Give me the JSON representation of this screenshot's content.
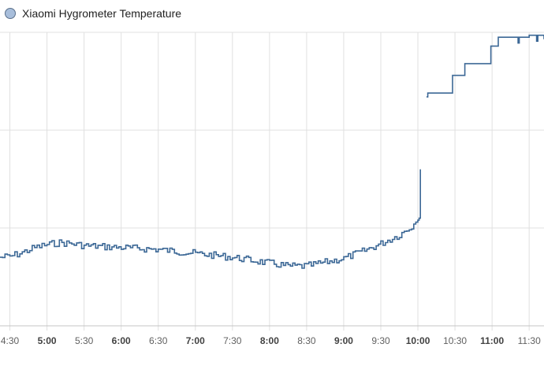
{
  "legend": {
    "label": "Xiaomi Hygrometer Temperature",
    "swatch_fill": "#a8bedb"
  },
  "colors": {
    "line": "#3c6896",
    "grid": "#e0e0e0",
    "axis": "#c4c4c4"
  },
  "chart_data": {
    "type": "line",
    "grid": true,
    "legend_position": "top-left",
    "x_unit": "time",
    "xlim": [
      "4:22",
      "11:42"
    ],
    "ylim": [
      0,
      3
    ],
    "x_ticks": [
      {
        "label": "4:30",
        "t": "4:30",
        "major": false
      },
      {
        "label": "5:00",
        "t": "5:00",
        "major": true
      },
      {
        "label": "5:30",
        "t": "5:30",
        "major": false
      },
      {
        "label": "6:00",
        "t": "6:00",
        "major": true
      },
      {
        "label": "6:30",
        "t": "6:30",
        "major": false
      },
      {
        "label": "7:00",
        "t": "7:00",
        "major": true
      },
      {
        "label": "7:30",
        "t": "7:30",
        "major": false
      },
      {
        "label": "8:00",
        "t": "8:00",
        "major": true
      },
      {
        "label": "8:30",
        "t": "8:30",
        "major": false
      },
      {
        "label": "9:00",
        "t": "9:00",
        "major": true
      },
      {
        "label": "9:30",
        "t": "9:30",
        "major": false
      },
      {
        "label": "10:00",
        "t": "10:00",
        "major": true
      },
      {
        "label": "10:30",
        "t": "10:30",
        "major": false
      },
      {
        "label": "11:00",
        "t": "11:00",
        "major": true
      },
      {
        "label": "11:30",
        "t": "11:30",
        "major": false
      }
    ],
    "y_gridlines": [
      0,
      1,
      2,
      3
    ],
    "series": [
      {
        "name": "Xiaomi Hygrometer Temperature",
        "segments": [
          {
            "step": false,
            "points": [
              [
                "4:22",
                0.7
              ],
              [
                "4:30",
                0.71
              ],
              [
                "4:40",
                0.75
              ],
              [
                "4:50",
                0.8
              ],
              [
                "5:00",
                0.83
              ],
              [
                "5:10",
                0.85
              ],
              [
                "5:20",
                0.84
              ],
              [
                "5:30",
                0.82
              ],
              [
                "5:45",
                0.81
              ],
              [
                "6:00",
                0.8
              ],
              [
                "6:15",
                0.79
              ],
              [
                "6:30",
                0.78
              ],
              [
                "6:45",
                0.76
              ],
              [
                "7:00",
                0.74
              ],
              [
                "7:15",
                0.72
              ],
              [
                "7:30",
                0.7
              ],
              [
                "7:45",
                0.67
              ],
              [
                "8:00",
                0.64
              ],
              [
                "8:15",
                0.61
              ],
              [
                "8:30",
                0.61
              ],
              [
                "8:45",
                0.65
              ],
              [
                "9:00",
                0.69
              ],
              [
                "9:15",
                0.76
              ],
              [
                "9:30",
                0.84
              ],
              [
                "9:45",
                0.93
              ],
              [
                "9:55",
                1.02
              ],
              [
                "10:00",
                1.08
              ],
              [
                "10:01",
                1.1
              ],
              [
                "10:02",
                1.12
              ],
              [
                "10:02",
                1.6
              ]
            ]
          },
          {
            "step": true,
            "points": [
              [
                "10:07",
                2.34
              ],
              [
                "10:08",
                2.38
              ],
              [
                "10:28",
                2.38
              ],
              [
                "10:28",
                2.56
              ],
              [
                "10:38",
                2.56
              ],
              [
                "10:38",
                2.68
              ],
              [
                "10:59",
                2.68
              ],
              [
                "10:59",
                2.86
              ],
              [
                "11:05",
                2.86
              ],
              [
                "11:05",
                2.95
              ],
              [
                "11:21",
                2.95
              ],
              [
                "11:21",
                2.89
              ],
              [
                "11:22",
                2.95
              ],
              [
                "11:30",
                2.95
              ],
              [
                "11:30",
                2.97
              ],
              [
                "11:36",
                2.97
              ],
              [
                "11:36",
                2.91
              ],
              [
                "11:37",
                2.97
              ],
              [
                "11:42",
                2.97
              ],
              [
                "11:42",
                2.93
              ]
            ]
          }
        ]
      }
    ]
  }
}
